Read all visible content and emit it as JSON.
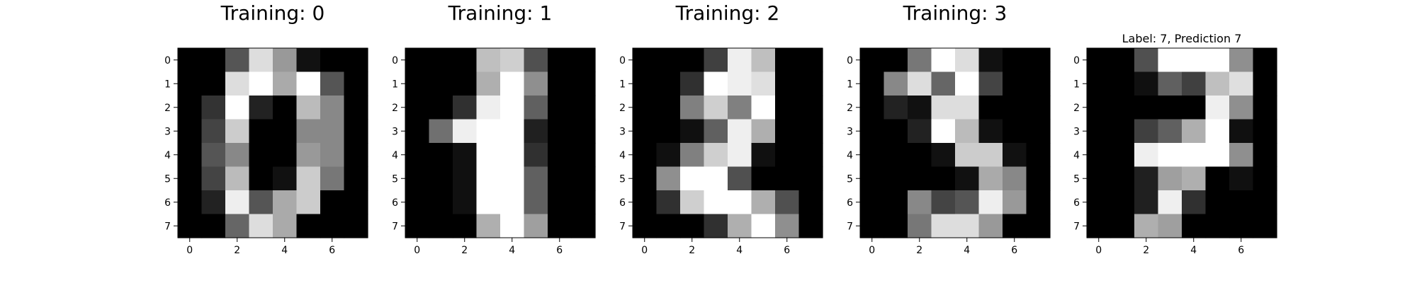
{
  "chart_data": [
    {
      "type": "heatmap",
      "title": "Training: 0",
      "xticks": [
        0,
        2,
        4,
        6
      ],
      "yticks": [
        0,
        1,
        2,
        3,
        4,
        5,
        6,
        7
      ],
      "colormap": "gray",
      "values": [
        [
          0,
          0,
          5,
          13,
          9,
          1,
          0,
          0
        ],
        [
          0,
          0,
          13,
          15,
          10,
          15,
          5,
          0
        ],
        [
          0,
          3,
          15,
          2,
          0,
          11,
          8,
          0
        ],
        [
          0,
          4,
          12,
          0,
          0,
          8,
          8,
          0
        ],
        [
          0,
          5,
          8,
          0,
          0,
          9,
          8,
          0
        ],
        [
          0,
          4,
          11,
          0,
          1,
          12,
          7,
          0
        ],
        [
          0,
          2,
          14,
          5,
          10,
          12,
          0,
          0
        ],
        [
          0,
          0,
          6,
          13,
          10,
          0,
          0,
          0
        ]
      ]
    },
    {
      "type": "heatmap",
      "title": "Training: 1",
      "xticks": [
        0,
        2,
        4,
        6
      ],
      "yticks": [
        0,
        1,
        2,
        3,
        4,
        5,
        6,
        7
      ],
      "colormap": "gray",
      "values": [
        [
          0,
          0,
          0,
          12,
          13,
          5,
          0,
          0
        ],
        [
          0,
          0,
          0,
          11,
          16,
          9,
          0,
          0
        ],
        [
          0,
          0,
          3,
          15,
          16,
          6,
          0,
          0
        ],
        [
          0,
          7,
          15,
          16,
          16,
          2,
          0,
          0
        ],
        [
          0,
          0,
          1,
          16,
          16,
          3,
          0,
          0
        ],
        [
          0,
          0,
          1,
          16,
          16,
          6,
          0,
          0
        ],
        [
          0,
          0,
          1,
          16,
          16,
          6,
          0,
          0
        ],
        [
          0,
          0,
          0,
          11,
          16,
          10,
          0,
          0
        ]
      ]
    },
    {
      "type": "heatmap",
      "title": "Training: 2",
      "xticks": [
        0,
        2,
        4,
        6
      ],
      "yticks": [
        0,
        1,
        2,
        3,
        4,
        5,
        6,
        7
      ],
      "colormap": "gray",
      "values": [
        [
          0,
          0,
          0,
          4,
          15,
          12,
          0,
          0
        ],
        [
          0,
          0,
          3,
          16,
          15,
          14,
          0,
          0
        ],
        [
          0,
          0,
          8,
          13,
          8,
          16,
          0,
          0
        ],
        [
          0,
          0,
          1,
          6,
          15,
          11,
          0,
          0
        ],
        [
          0,
          1,
          8,
          13,
          15,
          1,
          0,
          0
        ],
        [
          0,
          9,
          16,
          16,
          5,
          0,
          0,
          0
        ],
        [
          0,
          3,
          13,
          16,
          16,
          11,
          5,
          0
        ],
        [
          0,
          0,
          0,
          3,
          11,
          16,
          9,
          0
        ]
      ]
    },
    {
      "type": "heatmap",
      "title": "Training: 3",
      "xticks": [
        0,
        2,
        4,
        6
      ],
      "yticks": [
        0,
        1,
        2,
        3,
        4,
        5,
        6,
        7
      ],
      "colormap": "gray",
      "values": [
        [
          0,
          0,
          7,
          15,
          13,
          1,
          0,
          0
        ],
        [
          0,
          8,
          13,
          6,
          15,
          4,
          0,
          0
        ],
        [
          0,
          2,
          1,
          13,
          13,
          0,
          0,
          0
        ],
        [
          0,
          0,
          2,
          15,
          11,
          1,
          0,
          0
        ],
        [
          0,
          0,
          0,
          1,
          12,
          12,
          1,
          0
        ],
        [
          0,
          0,
          0,
          0,
          1,
          10,
          8,
          0
        ],
        [
          0,
          0,
          8,
          4,
          5,
          14,
          9,
          0
        ],
        [
          0,
          0,
          7,
          13,
          13,
          9,
          0,
          0
        ]
      ]
    },
    {
      "type": "heatmap",
      "title": "Label: 7, Prediction 7",
      "xticks": [
        0,
        2,
        4,
        6
      ],
      "yticks": [
        0,
        1,
        2,
        3,
        4,
        5,
        6,
        7
      ],
      "colormap": "gray",
      "values": [
        [
          0,
          0,
          5,
          16,
          16,
          16,
          9,
          0
        ],
        [
          0,
          0,
          1,
          6,
          4,
          12,
          14,
          0
        ],
        [
          0,
          0,
          0,
          0,
          0,
          15,
          9,
          0
        ],
        [
          0,
          0,
          4,
          6,
          11,
          16,
          1,
          0
        ],
        [
          0,
          0,
          15,
          16,
          16,
          16,
          9,
          0
        ],
        [
          0,
          0,
          2,
          10,
          11,
          0,
          1,
          0
        ],
        [
          0,
          0,
          2,
          15,
          3,
          0,
          0,
          0
        ],
        [
          0,
          0,
          11,
          10,
          0,
          0,
          0,
          0
        ]
      ]
    }
  ]
}
